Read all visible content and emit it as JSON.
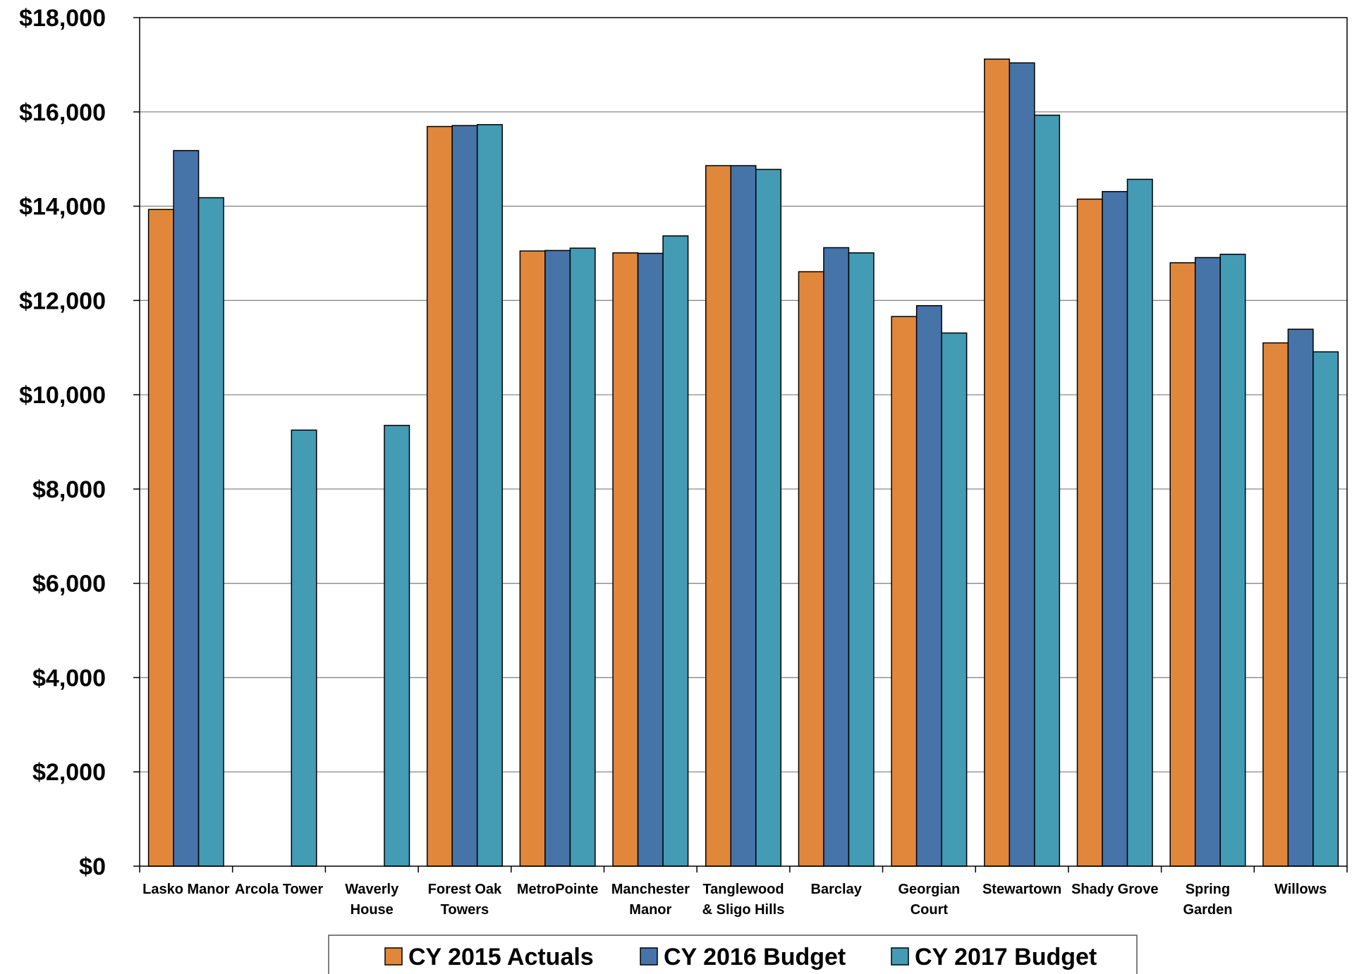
{
  "chart_data": {
    "type": "bar",
    "title": "",
    "xlabel": "",
    "ylabel": "",
    "ylim": [
      0,
      18000
    ],
    "ytick_values": [
      0,
      2000,
      4000,
      6000,
      8000,
      10000,
      12000,
      14000,
      16000,
      18000
    ],
    "ytick_labels": [
      "$0",
      "$2,000",
      "$4,000",
      "$6,000",
      "$8,000",
      "$10,000",
      "$12,000",
      "$14,000",
      "$16,000",
      "$18,000"
    ],
    "grid": true,
    "legend_position": "bottom",
    "categories": [
      [
        "Lasko Manor"
      ],
      [
        "Arcola Tower"
      ],
      [
        "Waverly",
        "House"
      ],
      [
        "Forest Oak",
        "Towers"
      ],
      [
        "MetroPointe"
      ],
      [
        "Manchester",
        "Manor"
      ],
      [
        "Tanglewood",
        "& Sligo Hills"
      ],
      [
        "Barclay"
      ],
      [
        "Georgian",
        "Court"
      ],
      [
        "Stewartown"
      ],
      [
        "Shady Grove"
      ],
      [
        "Spring",
        "Garden"
      ],
      [
        "Willows"
      ]
    ],
    "series": [
      {
        "name": "CY 2015 Actuals",
        "color": "#E0873C",
        "values": [
          13930,
          null,
          null,
          15690,
          13050,
          13010,
          14860,
          12610,
          11660,
          17120,
          14150,
          12800,
          11100
        ]
      },
      {
        "name": "CY 2016 Budget",
        "color": "#4673A8",
        "values": [
          15180,
          null,
          null,
          15710,
          13060,
          13000,
          14860,
          13120,
          11890,
          17040,
          14310,
          12910,
          11390
        ]
      },
      {
        "name": "CY 2017 Budget",
        "color": "#439BB4",
        "values": [
          14180,
          9250,
          9350,
          15730,
          13110,
          13370,
          14780,
          13010,
          11310,
          15930,
          14570,
          12980,
          10910
        ]
      }
    ]
  }
}
